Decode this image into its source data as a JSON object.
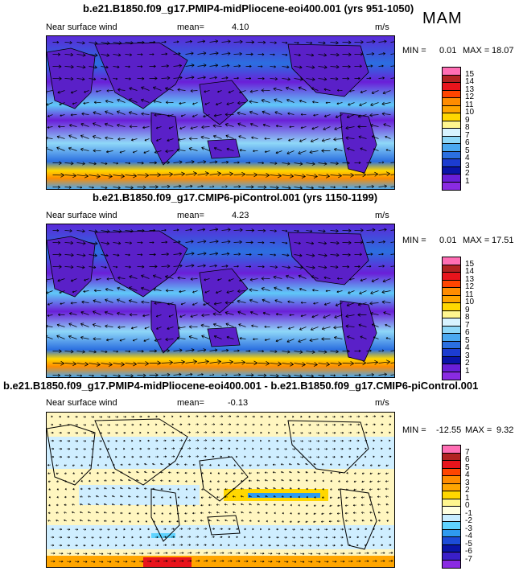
{
  "season": "MAM",
  "panels": [
    {
      "title": "b.e21.B1850.f09_g17.PMIP4-midPliocene-eoi400.001 (yrs 951-1050)",
      "field": "Near surface wind",
      "mean_label": "mean=",
      "mean": "4.10",
      "units": "m/s",
      "min_label": "MIN =",
      "min": "0.01",
      "max_label": "MAX =",
      "max": "18.07",
      "colorbar_labels": [
        "15",
        "14",
        "13",
        "12",
        "11",
        "10",
        "9",
        "8",
        "7",
        "6",
        "5",
        "4",
        "3",
        "2",
        "1"
      ],
      "colorbar_colors": [
        "#ff6eb4",
        "#b22222",
        "#e8141c",
        "#ff4500",
        "#ff8c00",
        "#ffa500",
        "#ffd700",
        "#fff68f",
        "#d8f3ff",
        "#8fd8f8",
        "#4aa8f0",
        "#2b6fe0",
        "#1c3cd0",
        "#0a14a8",
        "#6a1fd8",
        "#8a2be2"
      ]
    },
    {
      "title": "b.e21.B1850.f09_g17.CMIP6-piControl.001 (yrs 1150-1199)",
      "field": "Near surface wind",
      "mean_label": "mean=",
      "mean": "4.23",
      "units": "m/s",
      "min_label": "MIN =",
      "min": "0.01",
      "max_label": "MAX =",
      "max": "17.51",
      "colorbar_labels": [
        "15",
        "14",
        "13",
        "12",
        "11",
        "10",
        "9",
        "8",
        "7",
        "6",
        "5",
        "4",
        "3",
        "2",
        "1"
      ],
      "colorbar_colors": [
        "#ff6eb4",
        "#b22222",
        "#e8141c",
        "#ff4500",
        "#ff8c00",
        "#ffa500",
        "#ffd700",
        "#fff68f",
        "#d8f3ff",
        "#8fd8f8",
        "#4aa8f0",
        "#2b6fe0",
        "#1c3cd0",
        "#0a14a8",
        "#6a1fd8",
        "#8a2be2"
      ]
    },
    {
      "title": "b.e21.B1850.f09_g17.PMIP4-midPliocene-eoi400.001 - b.e21.B1850.f09_g17.CMIP6-piControl.001",
      "field": "Near surface wind",
      "mean_label": "mean=",
      "mean": "-0.13",
      "units": "m/s",
      "min_label": "MIN =",
      "min": "-12.55",
      "max_label": "MAX =",
      "max": "9.32",
      "colorbar_labels": [
        "7",
        "6",
        "5",
        "4",
        "3",
        "2",
        "1",
        "0",
        "-1",
        "-2",
        "-3",
        "-4",
        "-5",
        "-6",
        "-7"
      ],
      "colorbar_colors": [
        "#ff6eb4",
        "#b22222",
        "#e8141c",
        "#ff4500",
        "#ff8c00",
        "#ffa500",
        "#ffd700",
        "#fff68f",
        "#ffffe0",
        "#c8ecff",
        "#5fd3ff",
        "#2e9bf0",
        "#1c4cd8",
        "#0a14a8",
        "#3a1fc8",
        "#8a2be2"
      ]
    }
  ],
  "colors": {
    "wind_low": "#6a1fd8",
    "wind_mid": "#2b6fe0",
    "wind_high": "#ff8c00",
    "diff_neutral": "#fff8c8",
    "diff_neg": "#bfe4ff",
    "land_outline": "#000000"
  }
}
